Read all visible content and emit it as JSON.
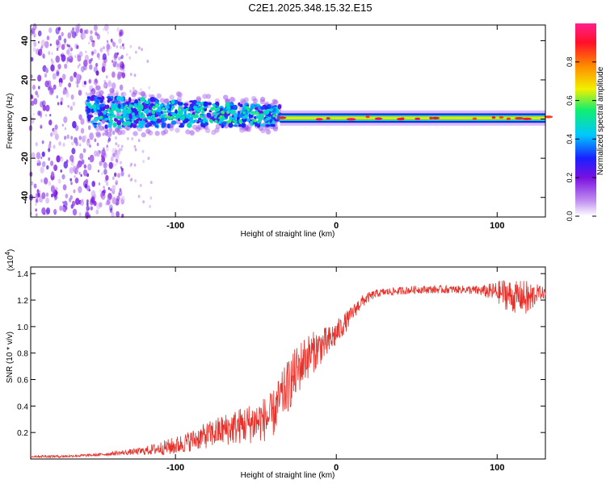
{
  "title": "C2E1.2025.348.15.32.E15",
  "colors": {
    "snr_line": "#e8312a",
    "colormap": [
      "#ffffff",
      "#c08ff0",
      "#7a10e0",
      "#1a20ff",
      "#00c8ff",
      "#10ee70",
      "#f2f000",
      "#ff8a00",
      "#ff1028",
      "#ff208c"
    ]
  },
  "chart_data": [
    {
      "type": "heatmap",
      "name": "spectrogram",
      "xlabel": "Height of straight line (km)",
      "ylabel": "Frequency (Hz)",
      "xlim": [
        -190,
        130
      ],
      "ylim": [
        -50,
        48
      ],
      "xticks": [
        "-100",
        "0",
        "100"
      ],
      "xtick_values": [
        -100,
        0,
        100
      ],
      "yticks": [
        "-40",
        "-20",
        "0",
        "20",
        "40"
      ],
      "ytick_values": [
        -40,
        -20,
        0,
        20,
        40
      ],
      "colorbar": {
        "label": "Normalized spectral amplitude",
        "range": [
          0,
          1
        ],
        "ticks": [
          "0.0",
          "0.2",
          "0.4",
          "0.6",
          "0.8"
        ],
        "tick_values": [
          0.0,
          0.2,
          0.4,
          0.6,
          0.8
        ]
      },
      "structure": {
        "noise_region_x": [
          -190,
          -140
        ],
        "spread_band": {
          "x": [
            -155,
            -35
          ],
          "center_hz": 4,
          "halfwidth_hz": [
            8,
            5
          ]
        },
        "narrow_carrier": {
          "x": [
            -35,
            130
          ],
          "center_hz": 0.5,
          "halfwidth_hz": 1.5
        }
      }
    },
    {
      "type": "line",
      "name": "snr",
      "xlabel": "Height of straight line (km)",
      "ylabel": "SNR (10 * v/v)",
      "y_scale_label": "(x10",
      "y_scale_exponent": "4",
      "y_scale_suffix": ")",
      "xlim": [
        -190,
        130
      ],
      "ylim": [
        0,
        1.45
      ],
      "xticks": [
        "-100",
        "0",
        "100"
      ],
      "xtick_values": [
        -100,
        0,
        100
      ],
      "yticks": [
        "0.2",
        "0.4",
        "0.6",
        "0.8",
        "1.0",
        "1.2",
        "1.4"
      ],
      "ytick_values": [
        0.2,
        0.4,
        0.6,
        0.8,
        1.0,
        1.2,
        1.4
      ],
      "series": [
        {
          "name": "SNR",
          "x": [
            -190,
            -170,
            -150,
            -140,
            -130,
            -120,
            -110,
            -100,
            -90,
            -80,
            -70,
            -60,
            -50,
            -40,
            -35,
            -30,
            -25,
            -20,
            -15,
            -10,
            -5,
            0,
            5,
            10,
            15,
            20,
            25,
            30,
            40,
            50,
            60,
            70,
            80,
            90,
            100,
            105,
            110,
            115,
            120,
            125,
            130
          ],
          "values": [
            0.02,
            0.02,
            0.03,
            0.04,
            0.05,
            0.06,
            0.08,
            0.1,
            0.14,
            0.18,
            0.22,
            0.25,
            0.28,
            0.32,
            0.45,
            0.55,
            0.65,
            0.75,
            0.8,
            0.85,
            0.88,
            0.95,
            1.02,
            1.1,
            1.18,
            1.22,
            1.25,
            1.26,
            1.27,
            1.28,
            1.28,
            1.28,
            1.28,
            1.27,
            1.26,
            1.25,
            1.22,
            1.23,
            1.2,
            1.26,
            1.25
          ],
          "noise": [
            0.01,
            0.01,
            0.01,
            0.015,
            0.02,
            0.03,
            0.05,
            0.07,
            0.08,
            0.1,
            0.12,
            0.14,
            0.16,
            0.18,
            0.18,
            0.2,
            0.2,
            0.18,
            0.16,
            0.14,
            0.12,
            0.1,
            0.08,
            0.06,
            0.05,
            0.04,
            0.03,
            0.03,
            0.03,
            0.03,
            0.03,
            0.03,
            0.03,
            0.04,
            0.08,
            0.12,
            0.12,
            0.12,
            0.15,
            0.06,
            0.04
          ]
        }
      ]
    }
  ]
}
